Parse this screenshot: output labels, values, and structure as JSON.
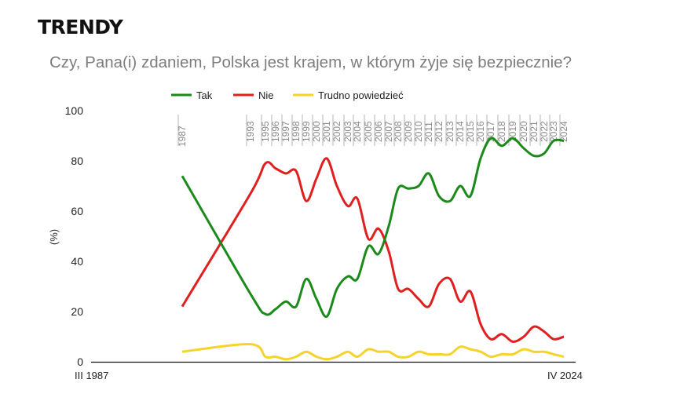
{
  "header": {
    "title": "TRENDY",
    "subtitle": "Czy, Pana(i) zdaniem, Polska jest krajem, w którym żyje się bezpiecznie?"
  },
  "chart_data": {
    "type": "line",
    "title": "Czy, Pana(i) zdaniem, Polska jest krajem, w którym żyje się bezpiecznie?",
    "ylabel": "(%)",
    "xlabel": "",
    "ylim": [
      0,
      100
    ],
    "yticks": [
      0,
      20,
      40,
      60,
      80,
      100
    ],
    "x": [
      "1987",
      "1993",
      "1995",
      "1996",
      "1997",
      "1998",
      "1999",
      "2000",
      "2001",
      "2002",
      "2003",
      "2004",
      "2005",
      "2006",
      "2007",
      "2008",
      "2009",
      "2010",
      "2011",
      "2012",
      "2013",
      "2014",
      "2015",
      "2016",
      "2017",
      "2018",
      "2019",
      "2020",
      "2021",
      "2022",
      "2023",
      "2024"
    ],
    "x_start_label": "III 1987",
    "x_end_label": "IV 2024",
    "legend_position": "top",
    "series": [
      {
        "name": "Tak",
        "color": "#1b8a1b",
        "values": [
          74,
          27,
          19,
          21,
          24,
          22,
          33,
          25,
          18,
          29,
          34,
          33,
          46,
          43,
          54,
          69,
          69,
          70,
          75,
          66,
          64,
          70,
          66,
          81,
          89,
          86,
          89,
          85,
          82,
          83,
          88,
          88
        ]
      },
      {
        "name": "Nie",
        "color": "#e01f1f",
        "values": [
          22,
          67,
          79,
          77,
          75,
          76,
          64,
          73,
          81,
          70,
          62,
          65,
          49,
          53,
          44,
          29,
          29,
          25,
          22,
          31,
          33,
          24,
          28,
          15,
          9,
          11,
          8,
          10,
          14,
          12,
          9,
          10
        ]
      },
      {
        "name": "Trudno powiedzieć",
        "color": "#f5d32a",
        "values": [
          4,
          7,
          2,
          2,
          1,
          2,
          4,
          2,
          1,
          2,
          4,
          2,
          5,
          4,
          4,
          2,
          2,
          4,
          3,
          3,
          3,
          6,
          5,
          4,
          2,
          3,
          3,
          5,
          4,
          4,
          3,
          2
        ]
      }
    ]
  }
}
